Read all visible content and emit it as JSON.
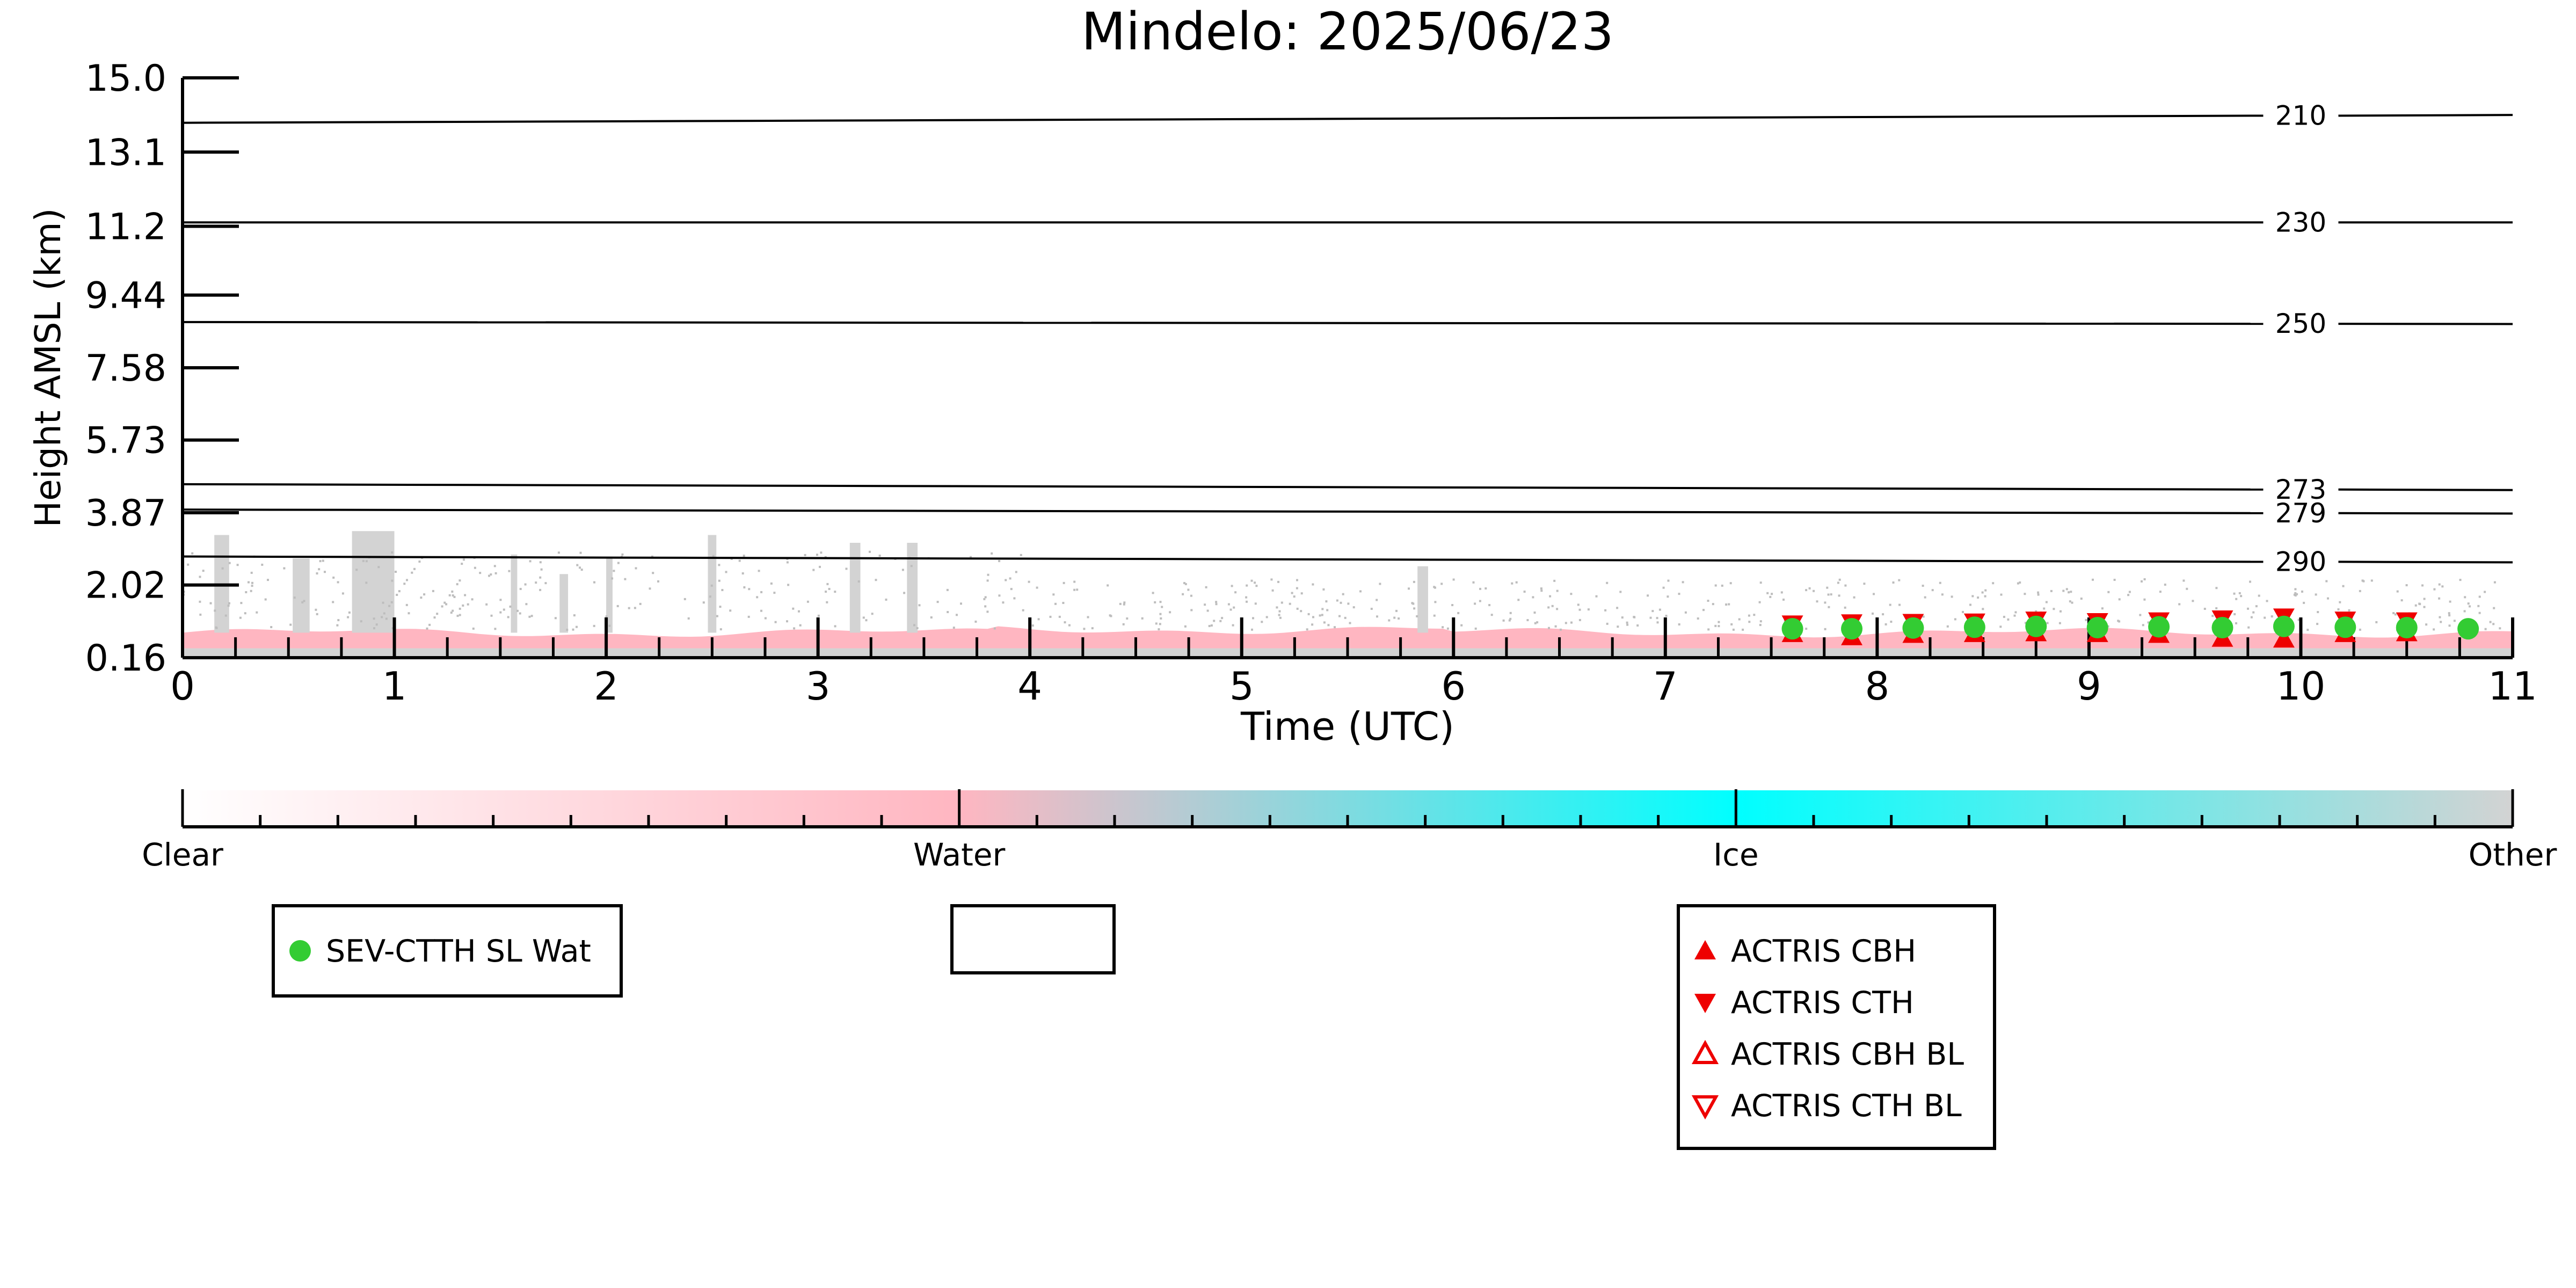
{
  "chart_data": {
    "type": "scatter",
    "title": "Mindelo: 2025/06/23",
    "xlabel": "Time (UTC)",
    "ylabel": "Height AMSL (km)",
    "xlim": [
      0,
      11
    ],
    "ylim": [
      0.16,
      15.0
    ],
    "x_ticks": [
      "0",
      "1",
      "2",
      "3",
      "4",
      "5",
      "6",
      "7",
      "8",
      "9",
      "10",
      "11"
    ],
    "y_ticks": [
      "15.0",
      "13.1",
      "11.2",
      "9.44",
      "7.58",
      "5.73",
      "3.87",
      "2.02",
      "0.16"
    ],
    "y_tick_values": [
      15.0,
      13.1,
      11.2,
      9.44,
      7.58,
      5.73,
      3.87,
      2.02,
      0.16
    ],
    "grid": false,
    "temperature_contours": [
      {
        "label": "210",
        "heights": [
          13.85,
          14.05
        ]
      },
      {
        "label": "230",
        "heights": [
          11.3,
          11.3
        ]
      },
      {
        "label": "250",
        "heights": [
          8.75,
          8.7
        ]
      },
      {
        "label": "273",
        "heights": [
          4.6,
          4.45
        ]
      },
      {
        "label": "279",
        "heights": [
          3.95,
          3.85
        ]
      },
      {
        "label": "290",
        "heights": [
          2.75,
          2.6
        ]
      }
    ],
    "cloud_phase_background": {
      "water_layer_top_km": 0.8,
      "other_columns": [
        {
          "start": 0.15,
          "end": 0.22,
          "top_km": 3.3
        },
        {
          "start": 0.52,
          "end": 0.6,
          "top_km": 2.7
        },
        {
          "start": 0.8,
          "end": 1.0,
          "top_km": 3.4
        },
        {
          "start": 1.55,
          "end": 1.58,
          "top_km": 2.8
        },
        {
          "start": 1.78,
          "end": 1.82,
          "top_km": 2.3
        },
        {
          "start": 2.0,
          "end": 2.03,
          "top_km": 2.7
        },
        {
          "start": 2.48,
          "end": 2.52,
          "top_km": 3.3
        },
        {
          "start": 3.15,
          "end": 3.2,
          "top_km": 3.1
        },
        {
          "start": 3.42,
          "end": 3.47,
          "top_km": 3.1
        },
        {
          "start": 5.83,
          "end": 5.88,
          "top_km": 2.5
        }
      ]
    },
    "series": [
      {
        "name": "SEV-CTTH SL Wat",
        "marker": "filled-circle",
        "color": "#33cc33",
        "x": [
          7.6,
          7.88,
          8.17,
          8.46,
          8.75,
          9.04,
          9.33,
          9.63,
          9.92,
          10.21,
          10.5,
          10.79
        ],
        "y": [
          0.9,
          0.9,
          0.92,
          0.94,
          0.96,
          0.93,
          0.95,
          0.93,
          0.96,
          0.94,
          0.93,
          0.9
        ]
      },
      {
        "name": "ACTRIS CBH",
        "marker": "filled-triangle-up",
        "color": "#ee0000",
        "x": [
          7.6,
          7.88,
          8.17,
          8.46,
          8.75,
          9.04,
          9.33,
          9.63,
          9.92,
          10.21,
          10.5
        ],
        "y": [
          0.78,
          0.7,
          0.76,
          0.78,
          0.8,
          0.78,
          0.76,
          0.66,
          0.64,
          0.78,
          0.8
        ]
      },
      {
        "name": "ACTRIS CTH",
        "marker": "filled-triangle-down",
        "color": "#ee0000",
        "x": [
          7.6,
          7.88,
          8.17,
          8.46,
          8.75,
          9.04,
          9.33,
          9.63,
          9.92,
          10.21,
          10.5
        ],
        "y": [
          1.02,
          1.05,
          1.06,
          1.07,
          1.12,
          1.08,
          1.1,
          1.15,
          1.2,
          1.12,
          1.1
        ]
      },
      {
        "name": "ACTRIS CBH BL",
        "marker": "open-triangle-up",
        "color": "#ee0000",
        "x": [],
        "y": []
      },
      {
        "name": "ACTRIS CTH BL",
        "marker": "open-triangle-down",
        "color": "#ee0000",
        "x": [],
        "y": []
      }
    ],
    "colorbar": {
      "labels": [
        "Clear",
        "Water",
        "Ice",
        "Other"
      ],
      "colors": [
        "#ffffff",
        "#ffb6c1",
        "#00ffff",
        "#d3d3d3"
      ]
    },
    "legends": [
      {
        "entries": [
          "SEV-CTTH SL Wat"
        ]
      },
      {
        "entries": []
      },
      {
        "entries": [
          "ACTRIS CBH",
          "ACTRIS CTH",
          "ACTRIS CBH BL",
          "ACTRIS CTH BL"
        ]
      }
    ]
  }
}
